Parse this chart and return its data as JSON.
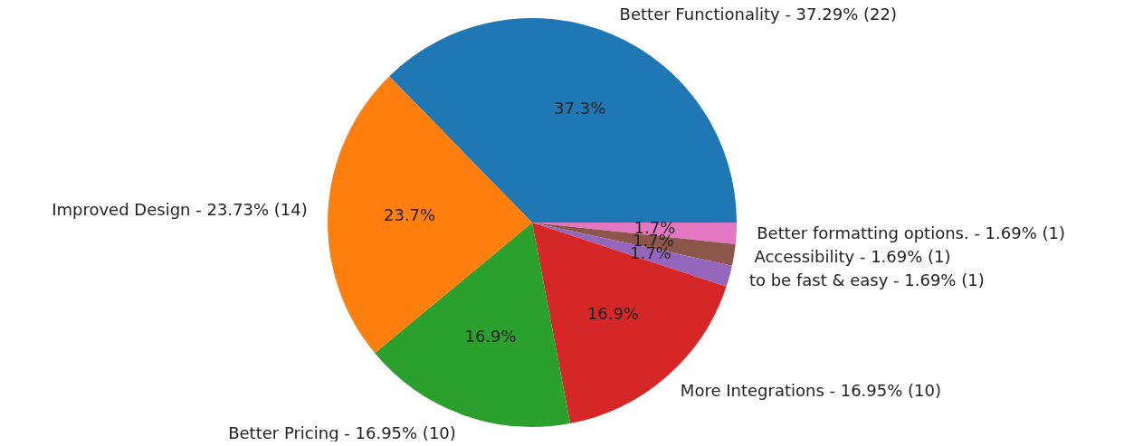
{
  "chart_data": {
    "type": "pie",
    "categories": [
      "Better Functionality - 37.29% (22)",
      "Improved Design - 23.73% (14)",
      "Better Pricing - 16.95% (10)",
      "More Integrations - 16.95% (10)",
      "to be fast & easy - 1.69% (1)",
      "Accessibility - 1.69% (1)",
      "Better formatting options. - 1.69% (1)"
    ],
    "values": [
      37.29,
      23.73,
      16.95,
      16.95,
      1.69,
      1.69,
      1.69
    ],
    "value_labels": [
      "37.3%",
      "23.7%",
      "16.9%",
      "16.9%",
      "1.7%",
      "1.7%",
      "1.7%"
    ],
    "colors": [
      "#1f77b4",
      "#ff7f0e",
      "#2ca02c",
      "#d62728",
      "#9467bd",
      "#8c564b",
      "#e377c2"
    ],
    "legend": false
  }
}
